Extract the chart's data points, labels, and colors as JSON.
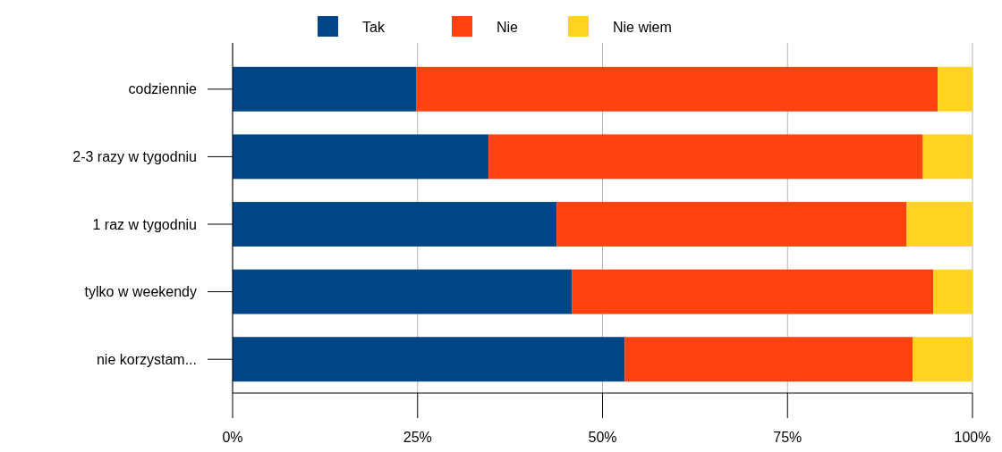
{
  "chart_data": {
    "type": "bar",
    "orientation": "horizontal",
    "stacked": true,
    "categories": [
      "codziennie",
      "2-3 razy w tygodniu",
      "1 raz w tygodniu",
      "tylko w weekendy",
      "nie korzystam..."
    ],
    "series": [
      {
        "name": "Tak",
        "color": "#004586",
        "values": [
          24.8,
          34.6,
          43.8,
          45.9,
          53.0
        ]
      },
      {
        "name": "Nie",
        "color": "#ff420e",
        "values": [
          70.5,
          58.7,
          47.3,
          48.8,
          38.9
        ]
      },
      {
        "name": "Nie wiem",
        "color": "#ffd320",
        "values": [
          4.7,
          6.7,
          8.9,
          5.3,
          8.1
        ]
      }
    ],
    "xlim": [
      0,
      100
    ],
    "xticks": [
      {
        "value": 0,
        "label": "0%"
      },
      {
        "value": 25,
        "label": "25%"
      },
      {
        "value": 50,
        "label": "50%"
      },
      {
        "value": 75,
        "label": "75%"
      },
      {
        "value": 100,
        "label": "100%"
      }
    ],
    "grid": "x",
    "legend": "top"
  }
}
